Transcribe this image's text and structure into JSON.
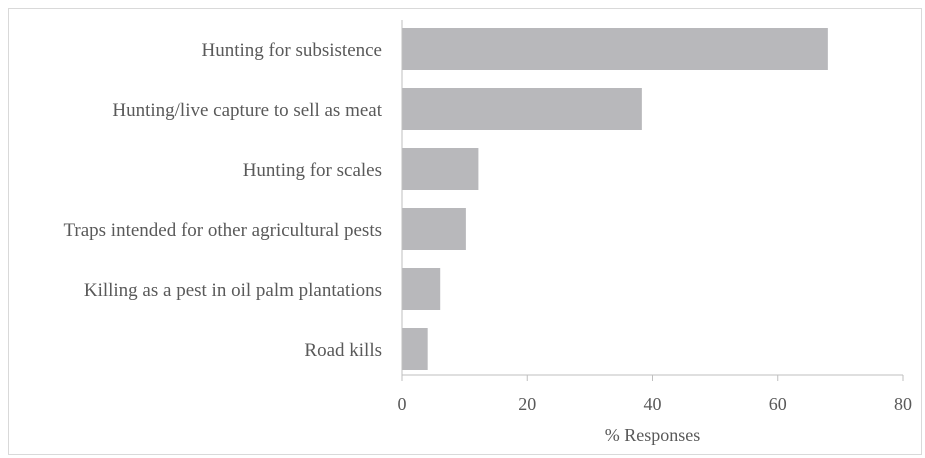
{
  "chart_data": {
    "type": "bar",
    "orientation": "horizontal",
    "categories": [
      "Hunting for subsistence",
      "Hunting/live capture to sell as meat",
      "Hunting for scales",
      "Traps intended for other agricultural pests",
      "Killing as a pest in oil palm plantations",
      "Road kills"
    ],
    "values": [
      68,
      38.3,
      12.2,
      10.2,
      6.1,
      4.1
    ],
    "xlabel": "% Responses",
    "ylabel": "",
    "xlim": [
      0,
      80
    ],
    "xticks": [
      "0",
      "20",
      "40",
      "60",
      "80"
    ],
    "grid": false,
    "bar_color": "#b8b8bb",
    "axis_color": "#bfbfbf"
  }
}
